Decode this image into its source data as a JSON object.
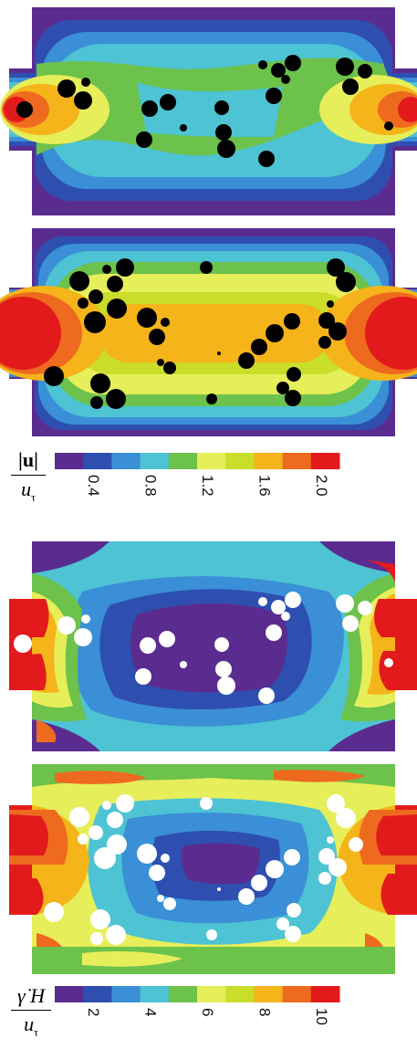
{
  "colorbar_velocity": {
    "label_numerator": "|u|",
    "label_denominator": "u",
    "label_denominator_sub": "τ",
    "ticks": [
      "0.4",
      "0.8",
      "1.2",
      "1.6",
      "2.0"
    ],
    "colors": [
      "#5b2c8f",
      "#2e4fb0",
      "#3a8fd6",
      "#4ec3d3",
      "#6cc24a",
      "#e6ee5a",
      "#c9dd2a",
      "#f4b41a",
      "#ee6a1f",
      "#e31a1c"
    ]
  },
  "colorbar_shear": {
    "label_numerator": "γ̇ H",
    "label_denominator": "u",
    "label_denominator_sub": "τ",
    "ticks": [
      "2",
      "4",
      "6",
      "8",
      "10"
    ],
    "colors": [
      "#5b2c8f",
      "#2e4fb0",
      "#3a8fd6",
      "#4ec3d3",
      "#6cc24a",
      "#e6ee5a",
      "#c9dd2a",
      "#f4b41a",
      "#ee6a1f",
      "#e31a1c"
    ]
  },
  "panels": [
    {
      "field": "velocity",
      "particle_color": "#000000"
    },
    {
      "field": "velocity",
      "particle_color": "#000000"
    },
    {
      "field": "shear",
      "particle_color": "#ffffff"
    },
    {
      "field": "shear",
      "particle_color": "#ffffff"
    }
  ]
}
